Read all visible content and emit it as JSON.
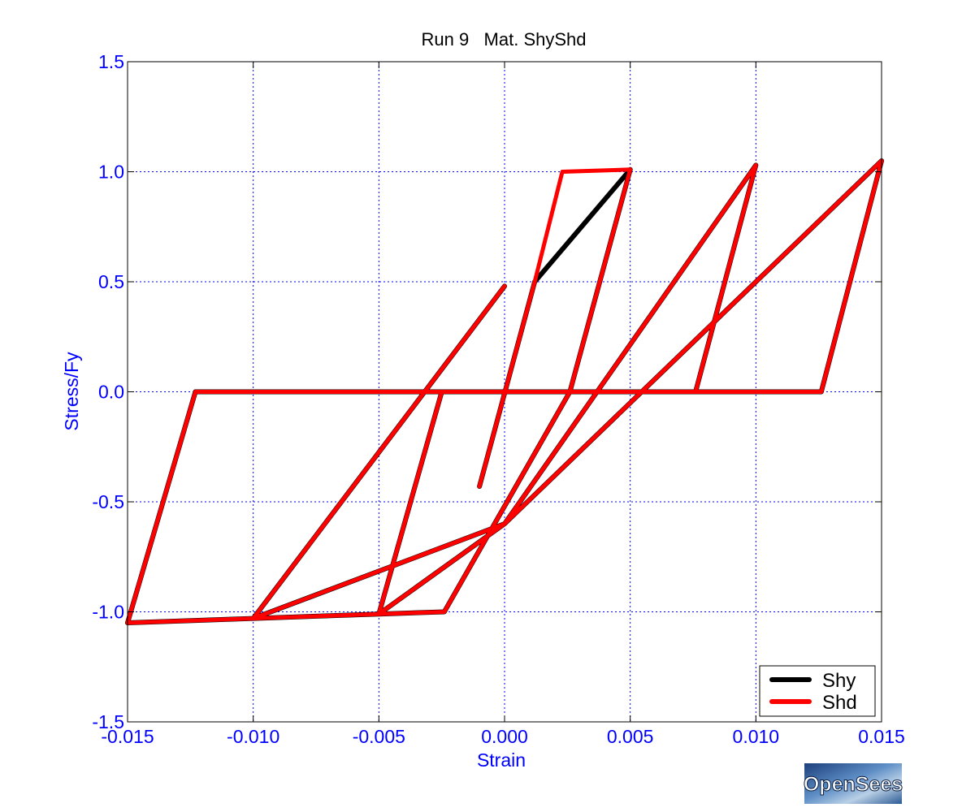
{
  "chart_data": {
    "type": "line",
    "title": "Run 9   Mat. ShyShd",
    "xlabel": "Strain",
    "ylabel": "Stress/Fy",
    "xlim": [
      -0.015,
      0.015
    ],
    "ylim": [
      -1.5,
      1.5
    ],
    "xticks": [
      -0.015,
      -0.01,
      -0.005,
      0.0,
      0.005,
      0.01,
      0.015
    ],
    "xtick_labels": [
      "-0.015",
      "-0.010",
      "-0.005",
      "0.000",
      "0.005",
      "0.010",
      "0.015"
    ],
    "yticks": [
      -1.5,
      -1.0,
      -0.5,
      0.0,
      0.5,
      1.0,
      1.5
    ],
    "ytick_labels": [
      "-1.5",
      "-1.0",
      "-0.5",
      "0.0",
      "0.5",
      "1.0",
      "1.5"
    ],
    "grid": true,
    "legend_position": "bottom-right",
    "series": [
      {
        "name": "Shy",
        "color": "#000000",
        "points": [
          [
            -0.001,
            -0.43
          ],
          [
            0.0012,
            0.5
          ],
          [
            0.005,
            1.01
          ],
          [
            0.0026,
            0.0
          ],
          [
            -0.0024,
            -1.0
          ],
          [
            -0.005,
            -1.01
          ],
          [
            0.0,
            -0.6
          ],
          [
            0.01,
            1.03
          ],
          [
            0.0076,
            0.0
          ],
          [
            -0.0025,
            0.0
          ],
          [
            -0.005,
            -1.01
          ],
          [
            -0.01,
            -1.03
          ],
          [
            0.0,
            -0.6
          ],
          [
            0.015,
            1.05
          ],
          [
            0.0126,
            0.0
          ],
          [
            -0.0123,
            0.0
          ],
          [
            -0.015,
            -1.05
          ],
          [
            -0.01,
            -1.03
          ],
          [
            0.0,
            0.48
          ]
        ]
      },
      {
        "name": "Shd",
        "color": "#ff0000",
        "points": [
          [
            -0.001,
            -0.43
          ],
          [
            0.0012,
            0.5
          ],
          [
            0.0023,
            1.0
          ],
          [
            0.005,
            1.01
          ],
          [
            0.0026,
            0.0
          ],
          [
            -0.0024,
            -1.0
          ],
          [
            -0.005,
            -1.01
          ],
          [
            0.0,
            -0.6
          ],
          [
            0.01,
            1.03
          ],
          [
            0.0076,
            0.0
          ],
          [
            -0.0025,
            0.0
          ],
          [
            -0.005,
            -1.01
          ],
          [
            -0.01,
            -1.03
          ],
          [
            0.0,
            -0.6
          ],
          [
            0.015,
            1.05
          ],
          [
            0.0126,
            0.0
          ],
          [
            -0.0123,
            0.0
          ],
          [
            -0.015,
            -1.05
          ],
          [
            -0.01,
            -1.03
          ],
          [
            0.0,
            0.48
          ]
        ]
      }
    ]
  },
  "logo": {
    "text": "OpenSees"
  }
}
